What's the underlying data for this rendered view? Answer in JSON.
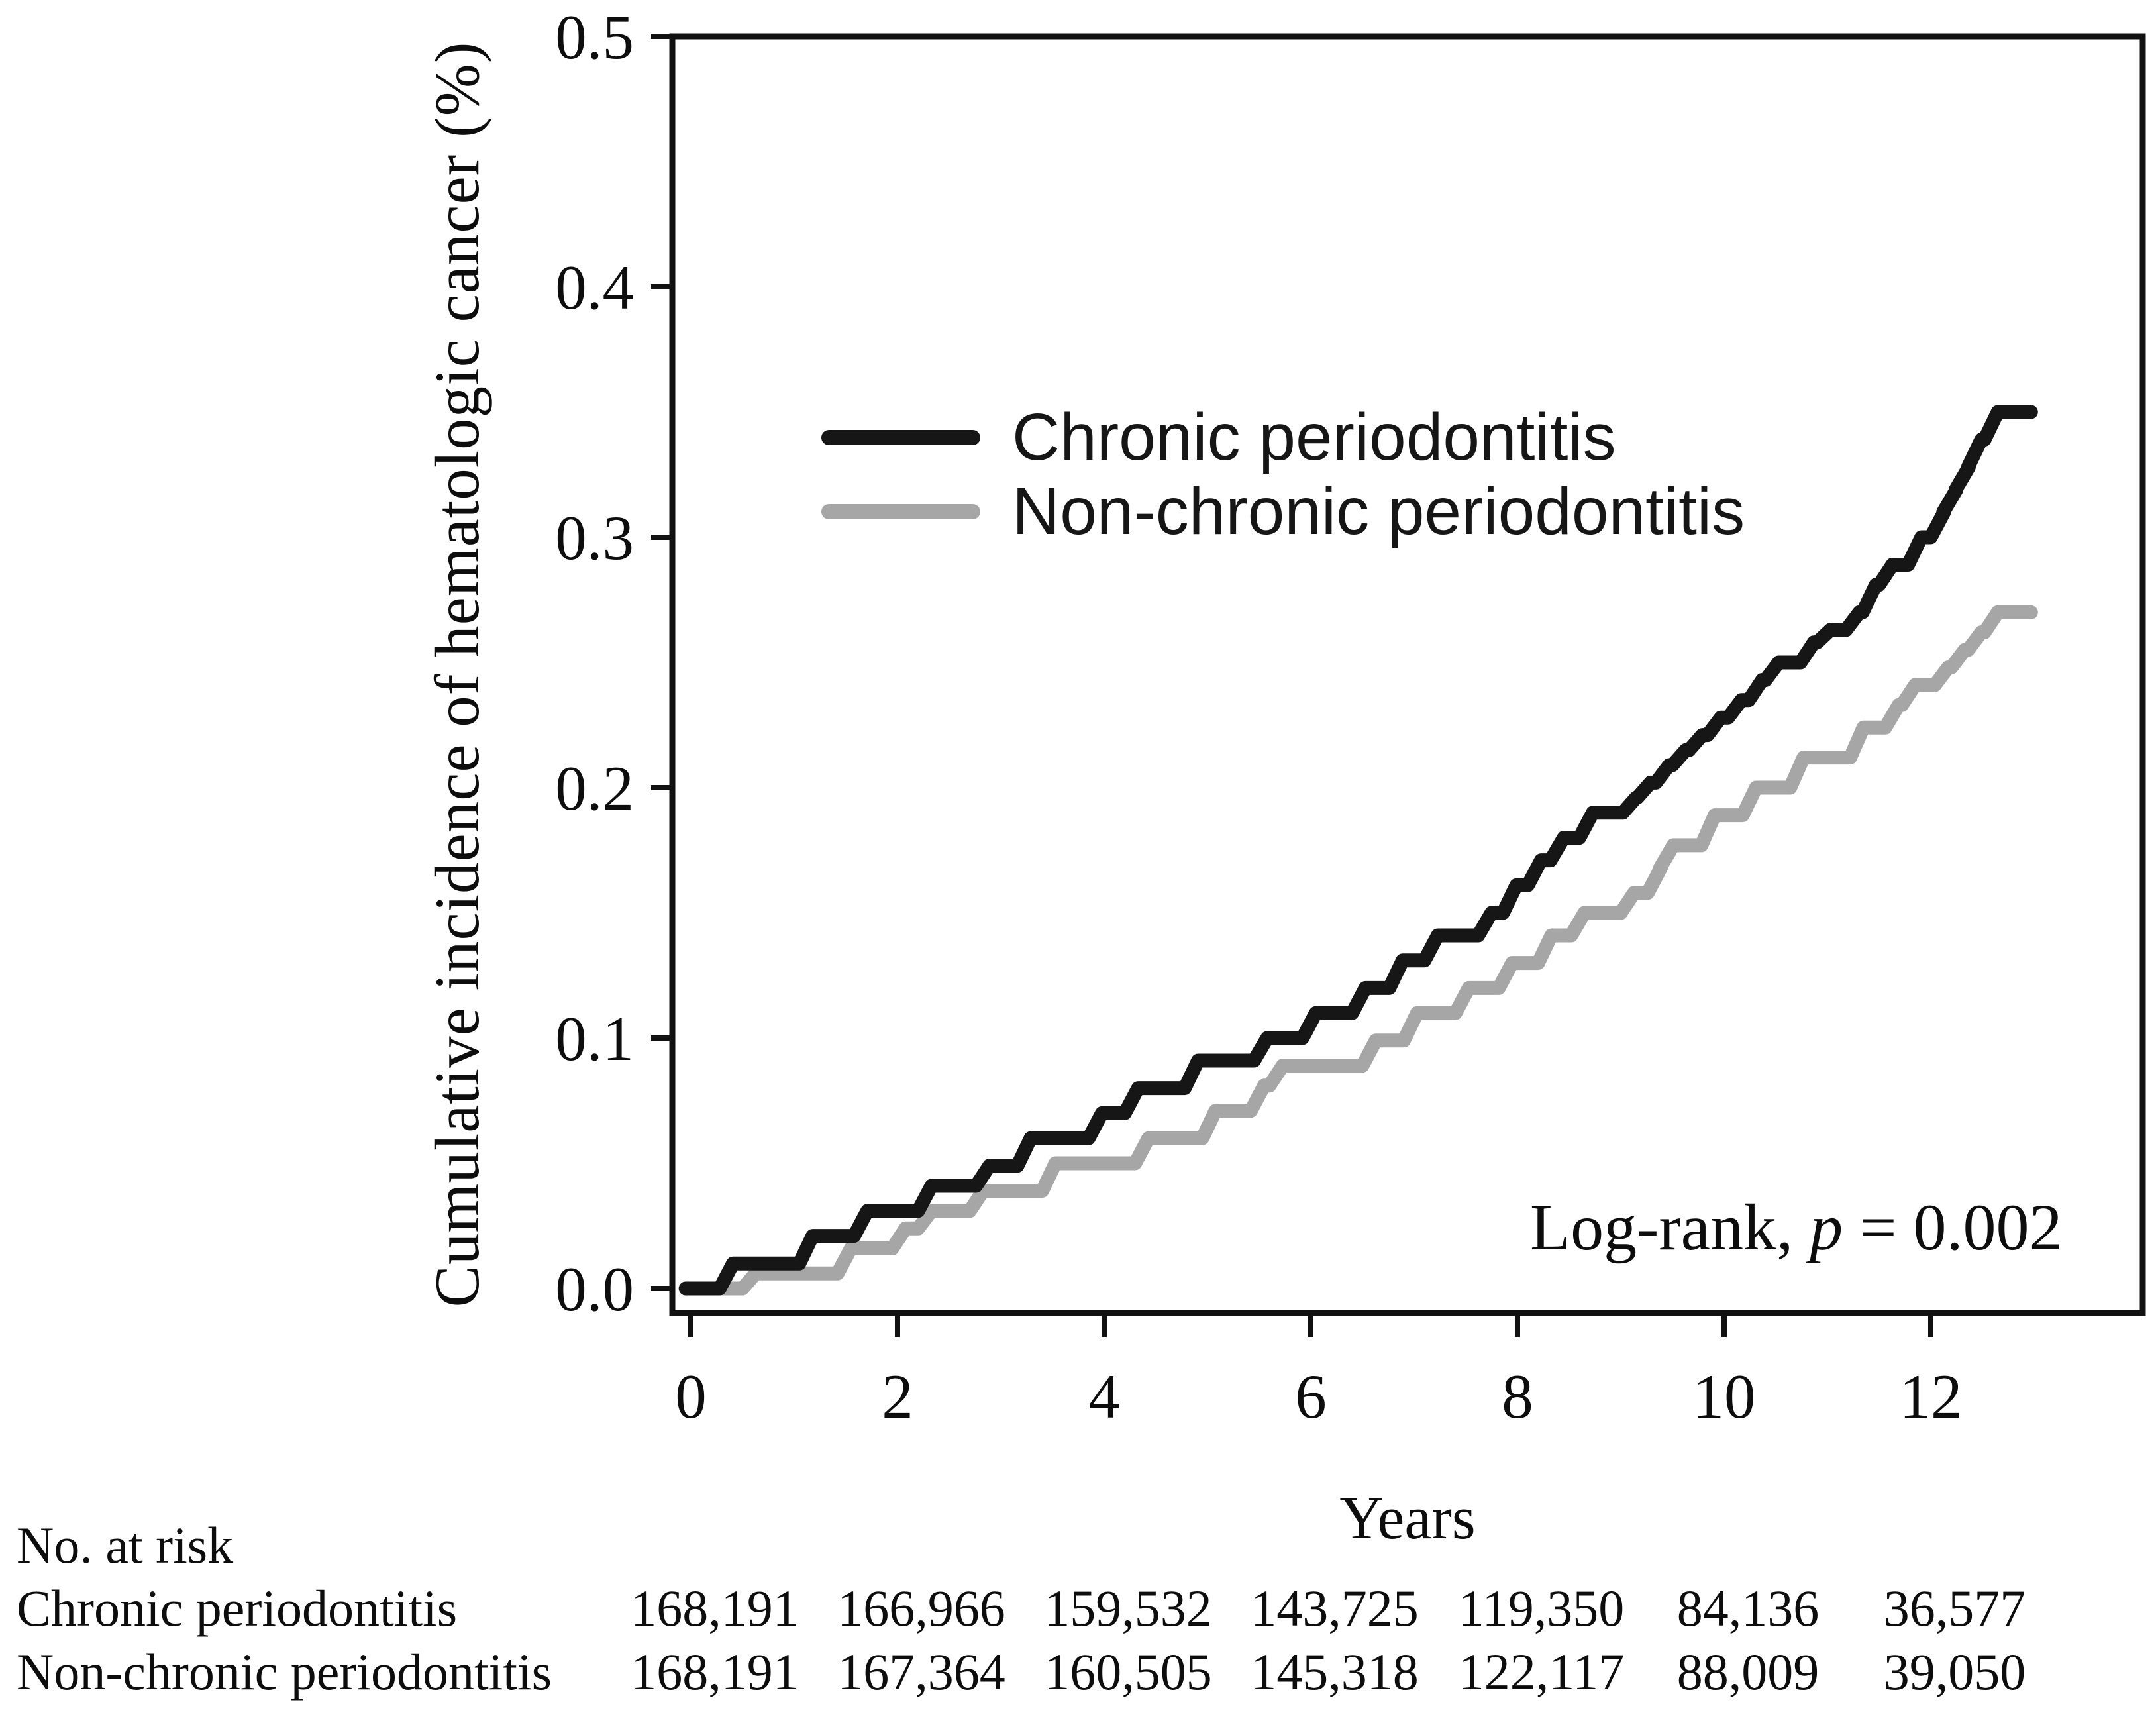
{
  "figure": {
    "y_axis": {
      "title": "Cumulative incidence of hematologic cancer (%)",
      "tick_labels": [
        "0.0",
        "0.1",
        "0.2",
        "0.3",
        "0.4",
        "0.5"
      ],
      "tick_values": [
        0,
        0.1,
        0.2,
        0.3,
        0.4,
        0.5
      ]
    },
    "x_axis": {
      "title": "Years",
      "tick_labels": [
        "0",
        "2",
        "4",
        "6",
        "8",
        "10",
        "12"
      ],
      "tick_values": [
        0,
        2,
        4,
        6,
        8,
        10,
        12
      ]
    },
    "annotation": {
      "full": "Log-rank, p = 0.002",
      "prefix": "Log-rank, ",
      "p": "p",
      "suffix": " = 0.002"
    }
  },
  "chart_data": {
    "type": "line",
    "subtype": "kaplan-meier-cumulative-incidence-step",
    "title": "",
    "xlabel": "Years",
    "ylabel": "Cumulative incidence of hematologic cancer (%)",
    "xlim": [
      0,
      14.2
    ],
    "ylim": [
      0,
      0.5
    ],
    "x_ticks": [
      0,
      2,
      4,
      6,
      8,
      10,
      12
    ],
    "y_ticks": [
      0,
      0.1,
      0.2,
      0.3,
      0.4,
      0.5
    ],
    "grid": false,
    "legend_position": "upper-center-inside",
    "annotation": "Log-rank, p = 0.002",
    "end_time": 12.97,
    "frame_color": "#111111",
    "series": [
      {
        "name": "Chronic periodontitis",
        "color": "#161616",
        "steps": [
          [
            -0.05,
            0.0
          ],
          [
            0.28,
            0.01
          ],
          [
            1.05,
            0.021
          ],
          [
            1.58,
            0.031
          ],
          [
            2.2,
            0.041
          ],
          [
            2.76,
            0.049
          ],
          [
            3.16,
            0.06
          ],
          [
            3.85,
            0.07
          ],
          [
            4.2,
            0.08
          ],
          [
            4.78,
            0.091
          ],
          [
            5.45,
            0.1
          ],
          [
            5.92,
            0.11
          ],
          [
            6.4,
            0.12
          ],
          [
            6.76,
            0.131
          ],
          [
            7.1,
            0.141
          ],
          [
            7.62,
            0.15
          ],
          [
            7.86,
            0.161
          ],
          [
            8.1,
            0.171
          ],
          [
            8.32,
            0.18
          ],
          [
            8.6,
            0.19
          ],
          [
            9.02,
            0.196
          ],
          [
            9.16,
            0.202
          ],
          [
            9.34,
            0.209
          ],
          [
            9.5,
            0.215
          ],
          [
            9.66,
            0.221
          ],
          [
            9.84,
            0.228
          ],
          [
            10.04,
            0.235
          ],
          [
            10.24,
            0.243
          ],
          [
            10.4,
            0.25
          ],
          [
            10.74,
            0.258
          ],
          [
            10.9,
            0.263
          ],
          [
            11.18,
            0.27
          ],
          [
            11.34,
            0.281
          ],
          [
            11.5,
            0.289
          ],
          [
            11.78,
            0.3
          ],
          [
            12.0,
            0.31
          ],
          [
            12.12,
            0.319
          ],
          [
            12.24,
            0.328
          ],
          [
            12.36,
            0.339
          ],
          [
            12.52,
            0.35
          ]
        ]
      },
      {
        "name": "Non-chronic periodontitis",
        "color": "#a6a6a6",
        "steps": [
          [
            -0.05,
            0.0
          ],
          [
            0.5,
            0.006
          ],
          [
            1.42,
            0.016
          ],
          [
            1.95,
            0.024
          ],
          [
            2.2,
            0.031
          ],
          [
            2.7,
            0.039
          ],
          [
            3.4,
            0.05
          ],
          [
            4.3,
            0.06
          ],
          [
            4.95,
            0.071
          ],
          [
            5.42,
            0.081
          ],
          [
            5.6,
            0.089
          ],
          [
            6.5,
            0.099
          ],
          [
            6.9,
            0.11
          ],
          [
            7.4,
            0.12
          ],
          [
            7.82,
            0.13
          ],
          [
            8.2,
            0.141
          ],
          [
            8.52,
            0.15
          ],
          [
            9.0,
            0.158
          ],
          [
            9.26,
            0.168
          ],
          [
            9.38,
            0.177
          ],
          [
            9.78,
            0.189
          ],
          [
            10.18,
            0.2
          ],
          [
            10.64,
            0.212
          ],
          [
            11.22,
            0.224
          ],
          [
            11.56,
            0.233
          ],
          [
            11.72,
            0.241
          ],
          [
            12.04,
            0.248
          ],
          [
            12.2,
            0.255
          ],
          [
            12.36,
            0.262
          ],
          [
            12.52,
            0.27
          ]
        ]
      }
    ]
  },
  "legend": {
    "items": [
      {
        "label": "Chronic periodontitis",
        "color": "#161616"
      },
      {
        "label": "Non-chronic periodontitis",
        "color": "#a6a6a6"
      }
    ]
  },
  "risk_table": {
    "header": "No. at risk",
    "years": [
      0,
      2,
      4,
      6,
      8,
      10,
      12
    ],
    "rows": [
      {
        "label": "Chronic periodontitis",
        "values": [
          "168,191",
          "166,966",
          "159,532",
          "143,725",
          "119,350",
          "84,136",
          "36,577"
        ]
      },
      {
        "label": "Non-chronic periodontitis",
        "values": [
          "168,191",
          "167,364",
          "160,505",
          "145,318",
          "122,117",
          "88,009",
          "39,050"
        ]
      }
    ]
  }
}
